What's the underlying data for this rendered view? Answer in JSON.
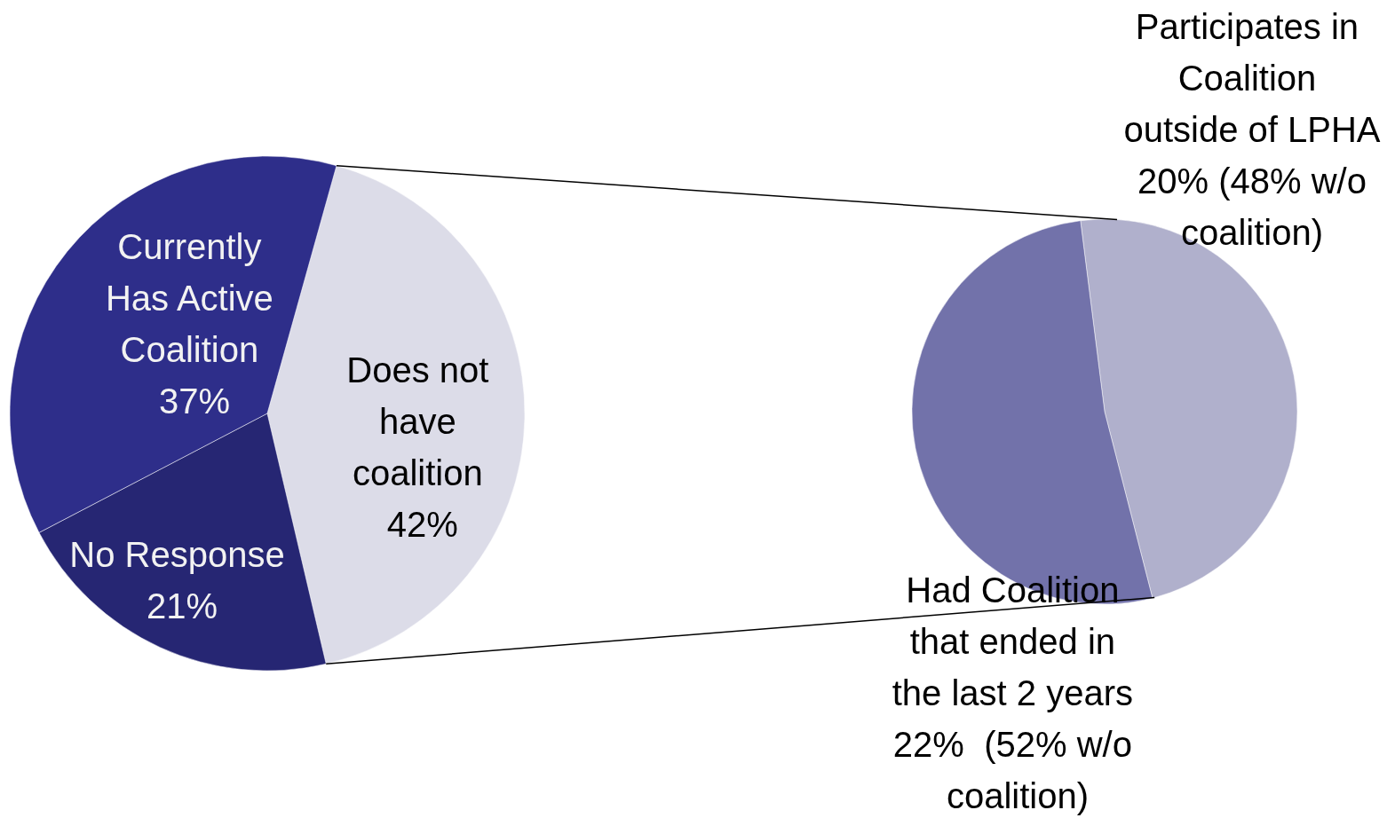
{
  "chart_data": [
    {
      "type": "pie",
      "categories": [
        "Does not have coalition",
        "No Response",
        "Currently Has Active Coalition"
      ],
      "values": [
        42,
        21,
        37
      ],
      "colors": [
        "#dcdce8",
        "#262673",
        "#2e2e8a"
      ],
      "value_labels": [
        "42%",
        "21%",
        "37%"
      ]
    },
    {
      "type": "pie",
      "categories": [
        "Participates in Coalition outside of LPHA",
        "Had Coalition that ended in the last 2 years"
      ],
      "values": [
        48,
        52
      ],
      "colors": [
        "#b0b0cc",
        "#7272aa"
      ],
      "value_labels": [
        "20% (48% w/o coalition)",
        "22%  (52% w/o coalition)"
      ]
    }
  ]
}
